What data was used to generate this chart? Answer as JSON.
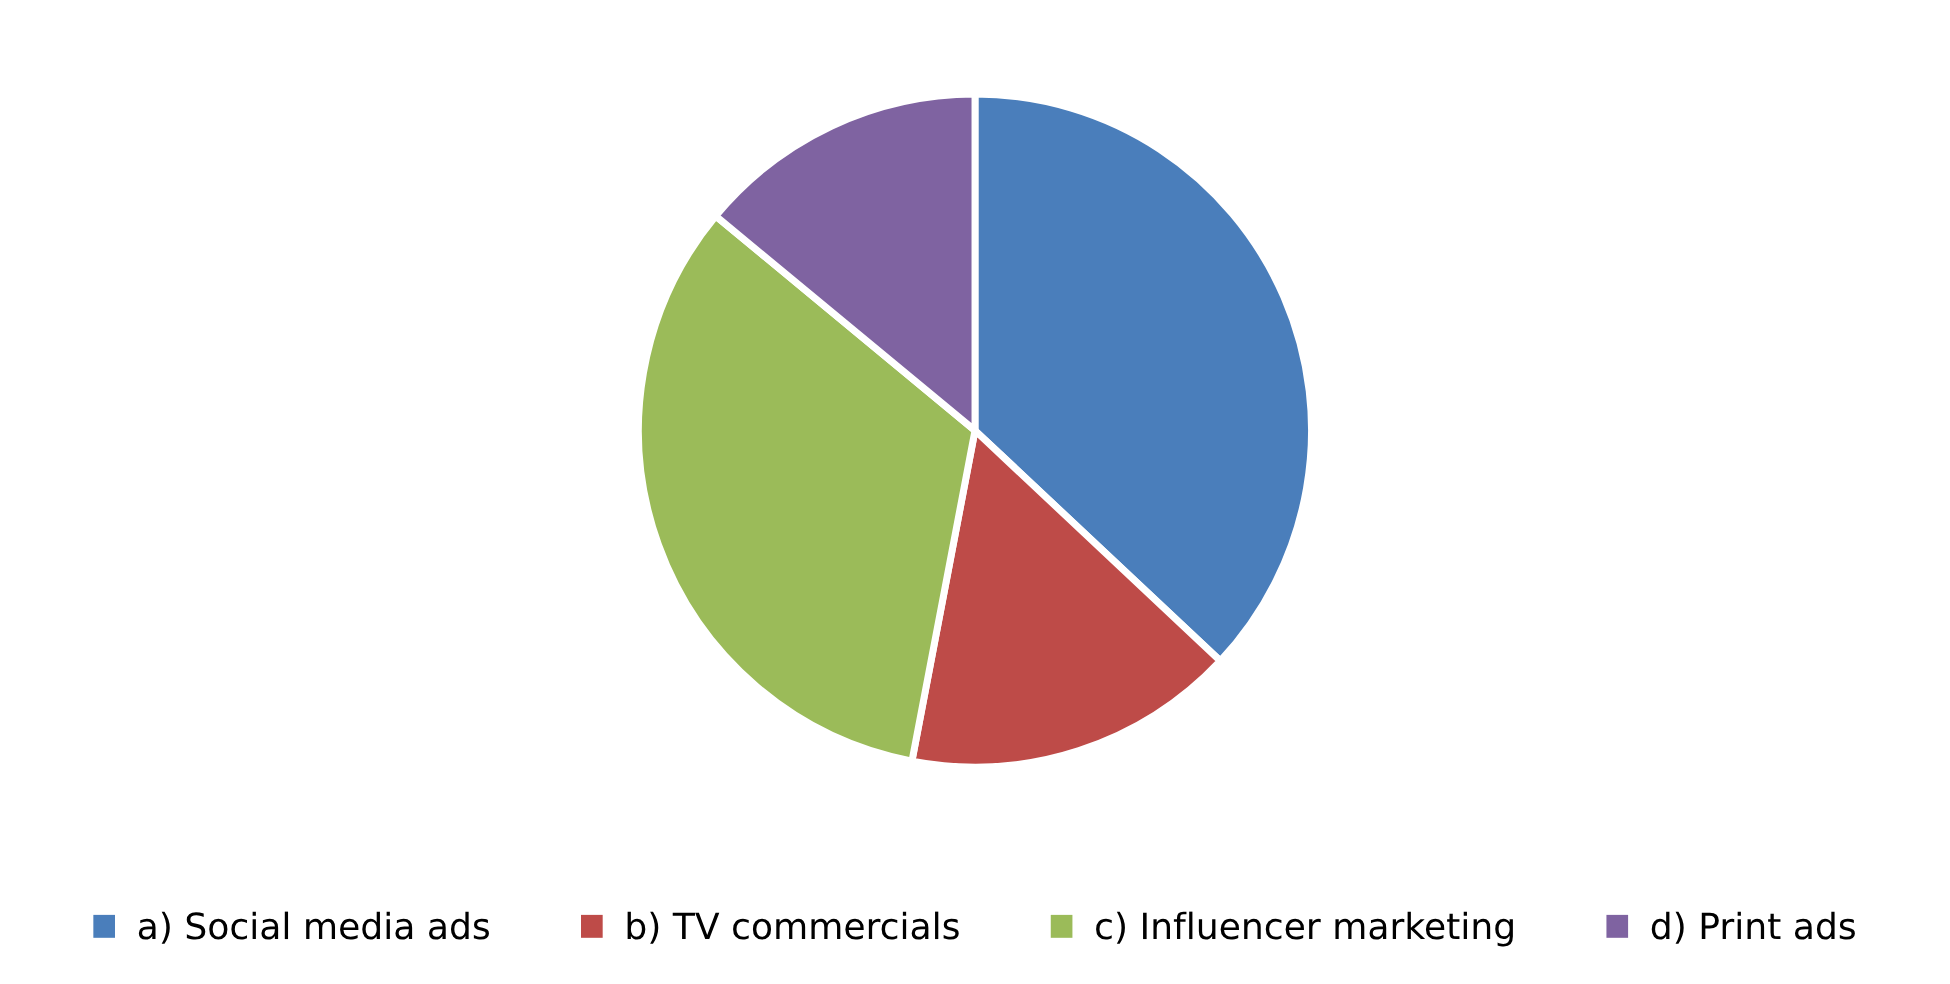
{
  "chart_data": {
    "type": "pie",
    "categories": [
      "a) Social media ads",
      "b) TV commercials",
      "c) Influencer marketing",
      "d) Print ads"
    ],
    "values": [
      37,
      16,
      33,
      14
    ],
    "colors": [
      "#4a7ebb",
      "#be4b48",
      "#9bbb59",
      "#7f63a1"
    ],
    "legend": "bottom"
  }
}
